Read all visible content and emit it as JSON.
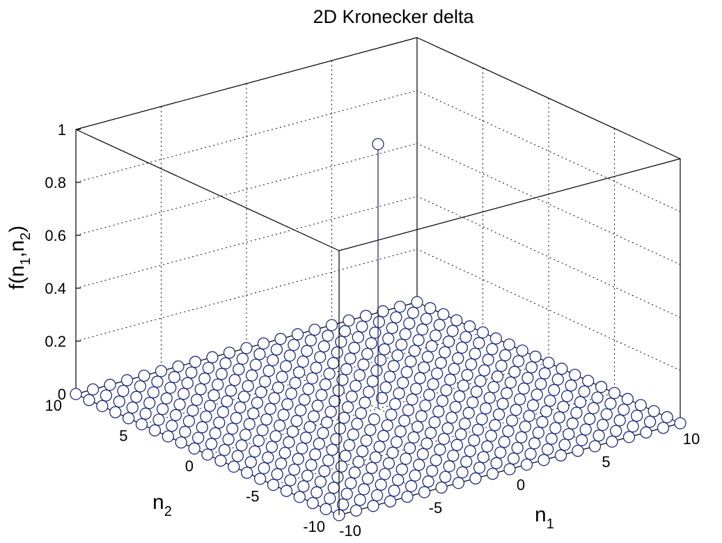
{
  "chart_data": {
    "type": "stem3",
    "title": "2D Kronecker delta",
    "xlabel": "n",
    "xlabel_subscript": "1",
    "ylabel": "n",
    "ylabel_subscript": "2",
    "zlabel_parts": [
      "f(n",
      "1",
      ",n",
      "2",
      ")"
    ],
    "xlim": [
      -10,
      10
    ],
    "ylim": [
      -10,
      10
    ],
    "zlim": [
      0,
      1
    ],
    "x_ticks": [
      -10,
      -5,
      0,
      5,
      10
    ],
    "y_ticks": [
      -10,
      -5,
      0,
      5,
      10
    ],
    "z_ticks": [
      0,
      0.2,
      0.4,
      0.6,
      0.8,
      1
    ],
    "x_tick_labels": [
      "-10",
      "-5",
      "0",
      "5",
      "10"
    ],
    "y_tick_labels": [
      "-10",
      "-5",
      "0",
      "5",
      "10"
    ],
    "z_tick_labels": [
      "0",
      "0.2",
      "0.4",
      "0.6",
      "0.8",
      "1"
    ],
    "n1_range": [
      -10,
      10
    ],
    "n2_range": [
      -10,
      10
    ],
    "impulse": {
      "n1": 0,
      "n2": 0,
      "value": 1
    },
    "background_value": 0,
    "grid": true,
    "marker": "circle",
    "colors": {
      "stem": "#1f2a7a",
      "axes": "#000000",
      "grid": "#000000"
    }
  }
}
